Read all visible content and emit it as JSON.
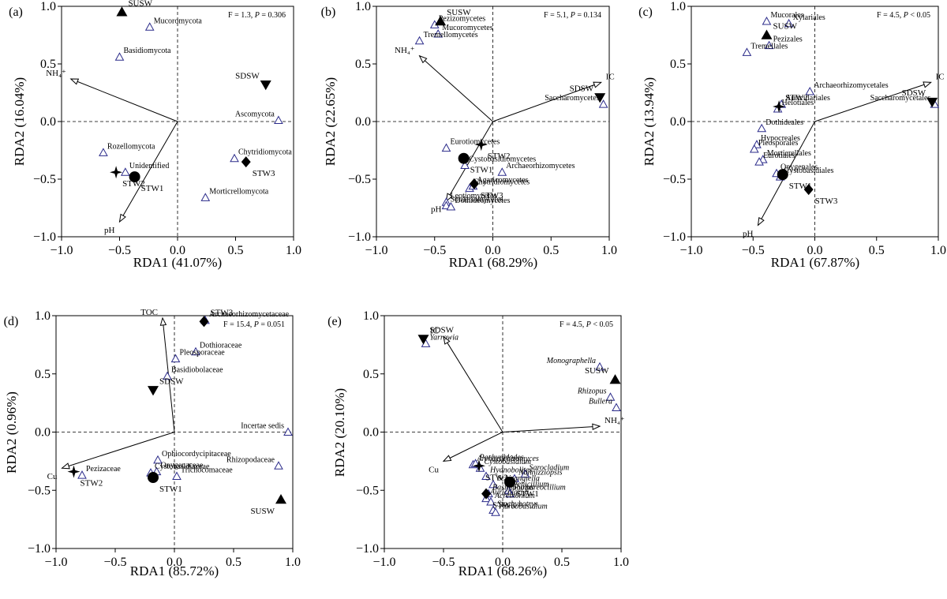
{
  "chart_data": [
    {
      "type": "scatter",
      "panel_label": "(a)",
      "stat": {
        "f": "F = 1.3, ",
        "p": "P",
        "rest": " = 0.306"
      },
      "xlabel": "RDA1 (41.07%)",
      "ylabel": "RDA2 (16.04%)",
      "xlim": [
        -1.0,
        1.0
      ],
      "ylim": [
        -1.0,
        1.0
      ],
      "xticks": [
        -1.0,
        -0.5,
        0.0,
        0.5,
        1.0
      ],
      "yticks": [
        -1.0,
        -0.5,
        0.0,
        0.5,
        1.0
      ],
      "samples": [
        {
          "label": "SUSW",
          "x": -0.48,
          "y": 0.95,
          "shape": "triangle-up"
        },
        {
          "label": "SDSW",
          "x": 0.76,
          "y": 0.32,
          "shape": "triangle-down"
        },
        {
          "label": "STW3",
          "x": 0.59,
          "y": -0.35,
          "shape": "diamond"
        },
        {
          "label": "STW1",
          "x": -0.37,
          "y": -0.48,
          "shape": "circle"
        },
        {
          "label": "STW2",
          "x": -0.53,
          "y": -0.44,
          "shape": "star"
        }
      ],
      "taxa": [
        {
          "label": "Mucoromycota",
          "x": -0.24,
          "y": 0.82
        },
        {
          "label": "Basidiomycota",
          "x": -0.5,
          "y": 0.56
        },
        {
          "label": "Ascomycota",
          "x": 0.87,
          "y": 0.01
        },
        {
          "label": "Chytridiomycota",
          "x": 0.49,
          "y": -0.32
        },
        {
          "label": "Rozellomycota",
          "x": -0.64,
          "y": -0.27
        },
        {
          "label": "Unidentified",
          "x": -0.45,
          "y": -0.44
        },
        {
          "label": "Morticrellomycota",
          "x": 0.24,
          "y": -0.66
        }
      ],
      "vectors": [
        {
          "label": "NH₄⁺",
          "x": -0.92,
          "y": 0.37
        },
        {
          "label": "pH",
          "x": -0.5,
          "y": -0.87
        }
      ]
    },
    {
      "type": "scatter",
      "panel_label": "(b)",
      "stat": {
        "f": "F = 5.1, ",
        "p": "P",
        "rest": " = 0.134"
      },
      "xlabel": "RDA1 (68.29%)",
      "ylabel": "RDA2 (22.65%)",
      "xlim": [
        -1.0,
        1.0
      ],
      "ylim": [
        -1.0,
        1.0
      ],
      "xticks": [
        -1.0,
        -0.5,
        0.0,
        0.5,
        1.0
      ],
      "yticks": [
        -1.0,
        -0.5,
        0.0,
        0.5,
        1.0
      ],
      "samples": [
        {
          "label": "SUSW",
          "x": -0.45,
          "y": 0.87,
          "shape": "triangle-up"
        },
        {
          "label": "SDSW",
          "x": 0.92,
          "y": 0.21,
          "shape": "triangle-down"
        },
        {
          "label": "STW2",
          "x": -0.1,
          "y": -0.2,
          "shape": "star"
        },
        {
          "label": "STW1",
          "x": -0.25,
          "y": -0.32,
          "shape": "circle"
        },
        {
          "label": "STW3",
          "x": -0.16,
          "y": -0.54,
          "shape": "diamond"
        }
      ],
      "taxa": [
        {
          "label": "Pezizomycetes",
          "x": -0.5,
          "y": 0.84
        },
        {
          "label": "Mucoromycetes",
          "x": -0.47,
          "y": 0.76
        },
        {
          "label": "Tremellomycetes",
          "x": -0.63,
          "y": 0.7
        },
        {
          "label": "Saccharomycetes",
          "x": 0.95,
          "y": 0.15
        },
        {
          "label": "Eurotiomycetes",
          "x": -0.4,
          "y": -0.23
        },
        {
          "label": "Archaeorhizomycetes",
          "x": 0.08,
          "y": -0.44
        },
        {
          "label": "Cystobasidiomycetes",
          "x": -0.24,
          "y": -0.38
        },
        {
          "label": "Chytridiomycetes",
          "x": -0.2,
          "y": -0.58
        },
        {
          "label": "Agaricomycetes",
          "x": -0.17,
          "y": -0.56
        },
        {
          "label": "Leotiomycetes",
          "x": -0.4,
          "y": -0.7
        },
        {
          "label": "Sordariomycetes",
          "x": -0.4,
          "y": -0.73
        },
        {
          "label": "Dothideomycetes",
          "x": -0.36,
          "y": -0.74
        }
      ],
      "vectors": [
        {
          "label": "NH₄⁺",
          "x": -0.63,
          "y": 0.57
        },
        {
          "label": "pH",
          "x": -0.4,
          "y": -0.69
        },
        {
          "label": "IC",
          "x": 0.93,
          "y": 0.34
        }
      ]
    },
    {
      "type": "scatter",
      "panel_label": "(c)",
      "stat": {
        "f": "F = 4.5, ",
        "p": "P",
        "rest": " < 0.05"
      },
      "xlabel": "RDA1 (67.87%)",
      "ylabel": "RDA2 (13.94%)",
      "xlim": [
        -1.0,
        1.0
      ],
      "ylim": [
        -1.0,
        1.0
      ],
      "xticks": [
        -1.0,
        -0.5,
        0.0,
        0.5,
        1.0
      ],
      "yticks": [
        -1.0,
        -0.5,
        0.0,
        0.5,
        1.0
      ],
      "samples": [
        {
          "label": "SUSW",
          "x": -0.39,
          "y": 0.75,
          "shape": "triangle-up"
        },
        {
          "label": "SDSW",
          "x": 0.95,
          "y": 0.17,
          "shape": "triangle-down"
        },
        {
          "label": "STW2",
          "x": -0.29,
          "y": 0.13,
          "shape": "star"
        },
        {
          "label": "STW1",
          "x": -0.26,
          "y": -0.46,
          "shape": "circle"
        },
        {
          "label": "STW3",
          "x": -0.05,
          "y": -0.59,
          "shape": "diamond"
        }
      ],
      "taxa": [
        {
          "label": "Mucorales",
          "x": -0.39,
          "y": 0.87
        },
        {
          "label": "Xylariales",
          "x": -0.21,
          "y": 0.85
        },
        {
          "label": "Pezizales",
          "x": -0.37,
          "y": 0.66
        },
        {
          "label": "Tremellales",
          "x": -0.55,
          "y": 0.6
        },
        {
          "label": "Archaeorhizomycetales",
          "x": -0.04,
          "y": 0.26
        },
        {
          "label": "Auriculariales",
          "x": -0.27,
          "y": 0.15
        },
        {
          "label": "Helotiales",
          "x": -0.3,
          "y": 0.11
        },
        {
          "label": "Saccharomycetales",
          "x": 0.97,
          "y": 0.15
        },
        {
          "label": "Dothideales",
          "x": -0.43,
          "y": -0.06
        },
        {
          "label": "Hypocreales",
          "x": -0.47,
          "y": -0.2
        },
        {
          "label": "Pleosporales",
          "x": -0.49,
          "y": -0.24
        },
        {
          "label": "Morticrellales",
          "x": -0.42,
          "y": -0.33
        },
        {
          "label": "Eurotiales",
          "x": -0.45,
          "y": -0.35
        },
        {
          "label": "Onygenales",
          "x": -0.31,
          "y": -0.45
        },
        {
          "label": "Cystobasidiales",
          "x": -0.28,
          "y": -0.48
        }
      ],
      "vectors": [
        {
          "label": "IC",
          "x": 0.94,
          "y": 0.34
        },
        {
          "label": "pH",
          "x": -0.46,
          "y": -0.9
        }
      ]
    },
    {
      "type": "scatter",
      "panel_label": "(d)",
      "stat": {
        "f": "F = 15.4, ",
        "p": "P",
        "rest": " = 0.051"
      },
      "xlabel": "RDA1 (85.72%)",
      "ylabel": "RDA2 (0.96%)",
      "xlim": [
        -1.0,
        1.0
      ],
      "ylim": [
        -1.0,
        1.0
      ],
      "xticks": [
        -1.0,
        -0.5,
        0.0,
        0.5,
        1.0
      ],
      "yticks": [
        -1.0,
        -0.5,
        0.0,
        0.5,
        1.0
      ],
      "samples": [
        {
          "label": "STW3",
          "x": 0.25,
          "y": 0.95,
          "shape": "diamond"
        },
        {
          "label": "SDSW",
          "x": -0.18,
          "y": 0.36,
          "shape": "triangle-down"
        },
        {
          "label": "STW2",
          "x": -0.85,
          "y": -0.34,
          "shape": "star"
        },
        {
          "label": "STW1",
          "x": -0.18,
          "y": -0.39,
          "shape": "circle"
        },
        {
          "label": "SUSW",
          "x": 0.9,
          "y": -0.58,
          "shape": "triangle-up"
        }
      ],
      "taxa": [
        {
          "label": "Archaeorhizomycetaceae",
          "x": 0.26,
          "y": 0.96
        },
        {
          "label": "Dothioraceae",
          "x": 0.18,
          "y": 0.69
        },
        {
          "label": "Pleosporaceae",
          "x": 0.01,
          "y": 0.63
        },
        {
          "label": "Basidiobolaceae",
          "x": -0.06,
          "y": 0.48
        },
        {
          "label": "Incertae sedis",
          "x": 0.96,
          "y": 0.0
        },
        {
          "label": "Ophiocordycipitaceae",
          "x": -0.14,
          "y": -0.24
        },
        {
          "label": "Onygenaceae",
          "x": -0.15,
          "y": -0.34
        },
        {
          "label": "Rhizopodaceae",
          "x": 0.88,
          "y": -0.29
        },
        {
          "label": "Trichocomaceae",
          "x": 0.02,
          "y": -0.38
        },
        {
          "label": "Cystobasidiaceae",
          "x": -0.2,
          "y": -0.35
        },
        {
          "label": "Pezizaceae",
          "x": -0.78,
          "y": -0.37
        }
      ],
      "vectors": [
        {
          "label": "TOC",
          "x": -0.1,
          "y": 0.98
        },
        {
          "label": "Cu",
          "x": -0.95,
          "y": -0.31
        }
      ]
    },
    {
      "type": "scatter",
      "panel_label": "(e)",
      "stat": {
        "f": "F = 4.5, ",
        "p": "P",
        "rest": " < 0.05"
      },
      "xlabel": "RDA1 (68.26%)",
      "ylabel": "RDA2 (20.10%)",
      "xlim": [
        -1.0,
        1.0
      ],
      "ylim": [
        -1.0,
        1.0
      ],
      "xticks": [
        -1.0,
        -0.5,
        0.0,
        0.5,
        1.0
      ],
      "yticks": [
        -1.0,
        -0.5,
        0.0,
        0.5,
        1.0
      ],
      "samples": [
        {
          "label": "SDSW",
          "x": -0.67,
          "y": 0.8,
          "shape": "triangle-down"
        },
        {
          "label": "SUSW",
          "x": 0.95,
          "y": 0.45,
          "shape": "triangle-up"
        },
        {
          "label": "STW2",
          "x": -0.2,
          "y": -0.29,
          "shape": "star"
        },
        {
          "label": "STW1",
          "x": 0.06,
          "y": -0.43,
          "shape": "circle"
        },
        {
          "label": "STW3",
          "x": -0.14,
          "y": -0.53,
          "shape": "diamond"
        }
      ],
      "taxa": [
        {
          "label": "Yarrowia",
          "x": -0.65,
          "y": 0.76
        },
        {
          "label": "Monographella",
          "x": 0.82,
          "y": 0.56
        },
        {
          "label": "Rhizopus",
          "x": 0.91,
          "y": 0.3
        },
        {
          "label": "Bullera",
          "x": 0.96,
          "y": 0.21
        },
        {
          "label": "Archaeorhizomyces",
          "x": -0.25,
          "y": -0.28
        },
        {
          "label": "Pachyphlodes",
          "x": -0.23,
          "y": -0.27
        },
        {
          "label": "Cystobasidium",
          "x": -0.19,
          "y": -0.31
        },
        {
          "label": "Hydnobolites",
          "x": -0.14,
          "y": -0.38
        },
        {
          "label": "Sarocladium",
          "x": 0.19,
          "y": -0.36
        },
        {
          "label": "Nannizziopsis",
          "x": 0.1,
          "y": -0.4
        },
        {
          "label": "Schizangiella",
          "x": -0.08,
          "y": -0.45
        },
        {
          "label": "Penicillium",
          "x": 0.05,
          "y": -0.5
        },
        {
          "label": "Basidiobolus",
          "x": -0.12,
          "y": -0.53
        },
        {
          "label": "Purpureocillium",
          "x": 0.06,
          "y": -0.53
        },
        {
          "label": "Auriculari a",
          "x": -0.14,
          "y": -0.57
        },
        {
          "label": "Acremonium",
          "x": -0.1,
          "y": -0.6
        },
        {
          "label": "Stachybotrys",
          "x": -0.08,
          "y": -0.67
        },
        {
          "label": "Aureobasidium",
          "x": -0.06,
          "y": -0.69
        }
      ],
      "vectors": [
        {
          "label": "IC",
          "x": -0.5,
          "y": 0.82
        },
        {
          "label": "NH₄⁺",
          "x": 0.82,
          "y": 0.05
        },
        {
          "label": "Cu",
          "x": -0.5,
          "y": -0.25
        }
      ]
    }
  ]
}
